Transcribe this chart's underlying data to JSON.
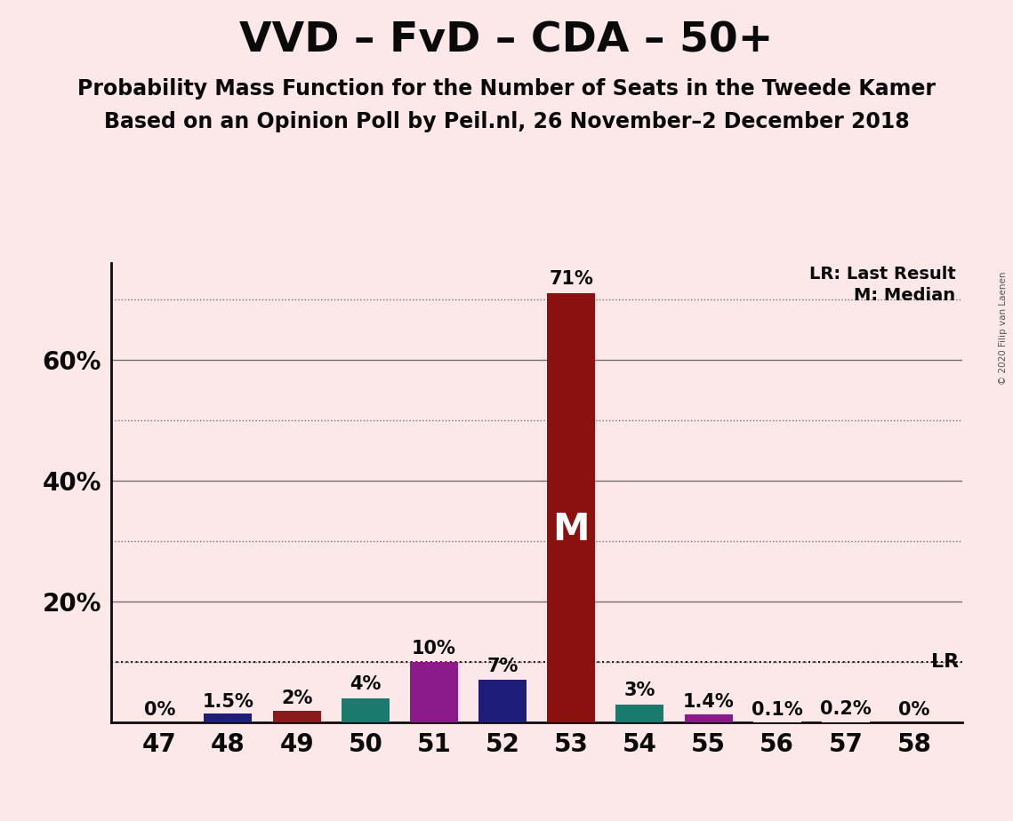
{
  "title": "VVD – FvD – CDA – 50+",
  "subtitle1": "Probability Mass Function for the Number of Seats in the Tweede Kamer",
  "subtitle2": "Based on an Opinion Poll by Peil.nl, 26 November–2 December 2018",
  "copyright": "© 2020 Filip van Laenen",
  "categories": [
    47,
    48,
    49,
    50,
    51,
    52,
    53,
    54,
    55,
    56,
    57,
    58
  ],
  "values": [
    0.0,
    1.5,
    2.0,
    4.0,
    10.0,
    7.0,
    71.0,
    3.0,
    1.4,
    0.1,
    0.2,
    0.0
  ],
  "labels": [
    "0%",
    "1.5%",
    "2%",
    "4%",
    "10%",
    "7%",
    "71%",
    "3%",
    "1.4%",
    "0.1%",
    "0.2%",
    "0%"
  ],
  "bar_colors": [
    "#fce8e8",
    "#1e1e7a",
    "#8b1a1a",
    "#1a7a6e",
    "#8b1a8b",
    "#1e1e7a",
    "#8b1010",
    "#1a7a6e",
    "#8b1a8b",
    "#fce8e8",
    "#fce8e8",
    "#fce8e8"
  ],
  "median_bar": 53,
  "lr_value": 10.0,
  "background_color": "#fce8e8",
  "ylim": [
    0,
    76
  ],
  "solid_lines": [
    20,
    40,
    60
  ],
  "dotted_lines": [
    10,
    30,
    50,
    70
  ],
  "ytick_positions": [
    20,
    40,
    60
  ],
  "ytick_labels": [
    "20%",
    "40%",
    "60%"
  ],
  "title_fontsize": 34,
  "subtitle_fontsize": 17,
  "axis_fontsize": 20,
  "label_fontsize": 15,
  "legend_fontsize": 14
}
